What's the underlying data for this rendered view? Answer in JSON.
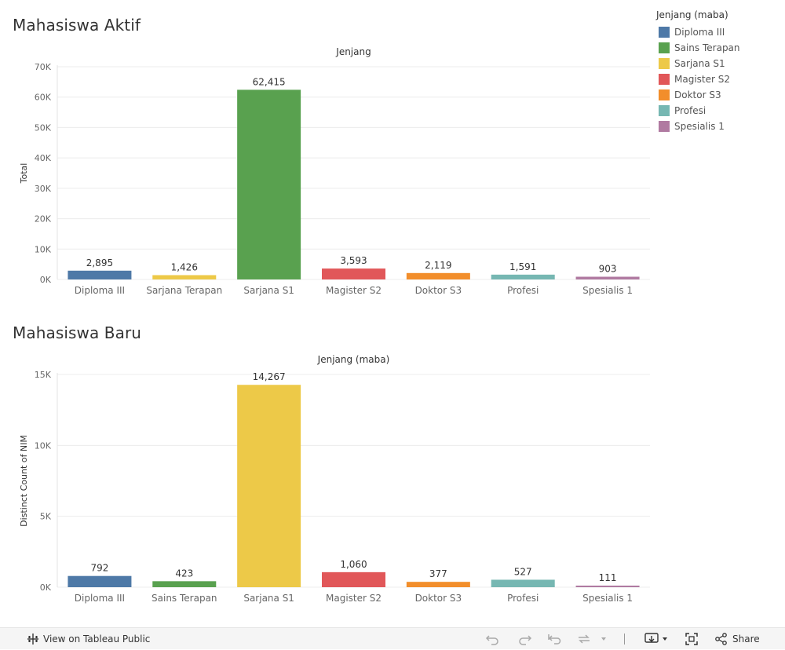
{
  "colors": {
    "diploma_iii": "#4e79a7",
    "sains_terapan": "#59a14f",
    "sarjana_s1": "#edc948",
    "magister_s2": "#e15759",
    "doktor_s3": "#f28e2b",
    "profesi": "#76b7b2",
    "spesialis_1": "#b07aa1"
  },
  "legend": {
    "title": "Jenjang (maba)",
    "items": [
      {
        "label": "Diploma III",
        "color": "#4e79a7"
      },
      {
        "label": "Sains Terapan",
        "color": "#59a14f"
      },
      {
        "label": "Sarjana S1",
        "color": "#edc948"
      },
      {
        "label": "Magister S2",
        "color": "#e15759"
      },
      {
        "label": "Doktor S3",
        "color": "#f28e2b"
      },
      {
        "label": "Profesi",
        "color": "#76b7b2"
      },
      {
        "label": "Spesialis 1",
        "color": "#b07aa1"
      }
    ]
  },
  "toolbar": {
    "view_label": "View on Tableau Public",
    "share_label": "Share"
  },
  "chart_data": [
    {
      "type": "bar",
      "title": "Mahasiswa Aktif",
      "header": "Jenjang",
      "xlabel": "",
      "ylabel": "Total",
      "ylim": [
        0,
        70000
      ],
      "yticks": [
        0,
        10000,
        20000,
        30000,
        40000,
        50000,
        60000,
        70000
      ],
      "ytick_labels": [
        "0K",
        "10K",
        "20K",
        "30K",
        "40K",
        "50K",
        "60K",
        "70K"
      ],
      "grid": true,
      "categories": [
        "Diploma III",
        "Sarjana Terapan",
        "Sarjana S1",
        "Magister S2",
        "Doktor S3",
        "Profesi",
        "Spesialis 1"
      ],
      "values": [
        2895,
        1426,
        62415,
        3593,
        2119,
        1591,
        903
      ],
      "data_labels": [
        "2,895",
        "1,426",
        "62,415",
        "3,593",
        "2,119",
        "1,591",
        "903"
      ],
      "bar_colors": [
        "#4e79a7",
        "#edc948",
        "#59a14f",
        "#e15759",
        "#f28e2b",
        "#76b7b2",
        "#b07aa1"
      ]
    },
    {
      "type": "bar",
      "title": "Mahasiswa Baru",
      "header": "Jenjang (maba)",
      "xlabel": "",
      "ylabel": "Distinct Count of NIM",
      "ylim": [
        0,
        15000
      ],
      "yticks": [
        0,
        5000,
        10000,
        15000
      ],
      "ytick_labels": [
        "0K",
        "5K",
        "10K",
        "15K"
      ],
      "grid": true,
      "categories": [
        "Diploma III",
        "Sains Terapan",
        "Sarjana S1",
        "Magister S2",
        "Doktor S3",
        "Profesi",
        "Spesialis 1"
      ],
      "values": [
        792,
        423,
        14267,
        1060,
        377,
        527,
        111
      ],
      "data_labels": [
        "792",
        "423",
        "14,267",
        "1,060",
        "377",
        "527",
        "111"
      ],
      "bar_colors": [
        "#4e79a7",
        "#59a14f",
        "#edc948",
        "#e15759",
        "#f28e2b",
        "#76b7b2",
        "#b07aa1"
      ]
    }
  ]
}
